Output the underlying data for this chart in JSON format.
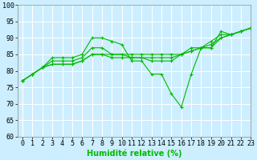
{
  "title": "",
  "xlabel": "Humidité relative (%)",
  "ylabel": "",
  "xlim": [
    -0.5,
    23
  ],
  "ylim": [
    60,
    100
  ],
  "yticks": [
    60,
    65,
    70,
    75,
    80,
    85,
    90,
    95,
    100
  ],
  "xticks": [
    0,
    1,
    2,
    3,
    4,
    5,
    6,
    7,
    8,
    9,
    10,
    11,
    12,
    13,
    14,
    15,
    16,
    17,
    18,
    19,
    20,
    21,
    22,
    23
  ],
  "background_color": "#cceeff",
  "grid_color": "#ffffff",
  "line_color": "#00bb00",
  "lines": [
    [
      77,
      79,
      81,
      84,
      84,
      84,
      85,
      90,
      90,
      89,
      88,
      83,
      83,
      79,
      79,
      73,
      69,
      79,
      87,
      87,
      92,
      91,
      92,
      93
    ],
    [
      77,
      79,
      81,
      83,
      83,
      83,
      84,
      87,
      87,
      85,
      85,
      84,
      84,
      83,
      83,
      83,
      85,
      87,
      87,
      89,
      91,
      91,
      92,
      93
    ],
    [
      77,
      79,
      81,
      82,
      82,
      82,
      83,
      85,
      85,
      84,
      84,
      84,
      84,
      84,
      84,
      84,
      85,
      86,
      87,
      88,
      90,
      91,
      92,
      93
    ],
    [
      77,
      79,
      81,
      82,
      82,
      82,
      83,
      85,
      85,
      85,
      85,
      85,
      85,
      85,
      85,
      85,
      85,
      86,
      87,
      87,
      90,
      91,
      92,
      93
    ]
  ],
  "figsize": [
    3.2,
    2.0
  ],
  "dpi": 100,
  "tick_fontsize": 6,
  "xlabel_fontsize": 7,
  "marker": "+",
  "markersize": 3,
  "linewidth": 0.8
}
